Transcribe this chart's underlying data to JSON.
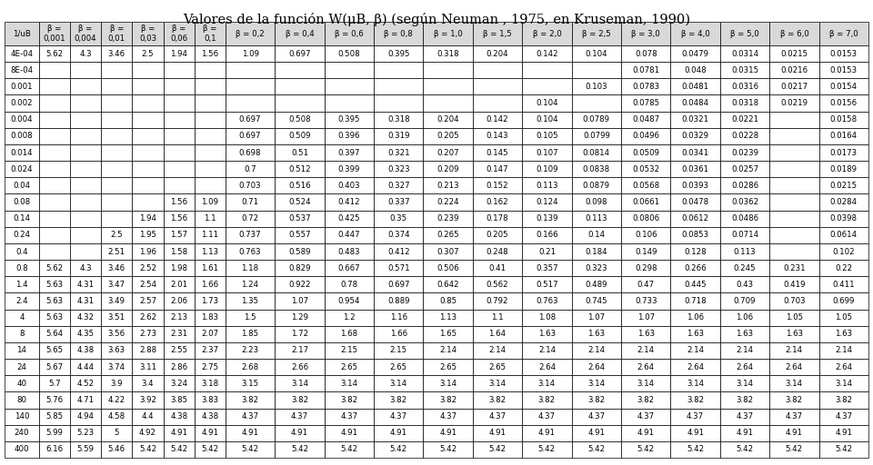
{
  "title": "Valores de la función W(μB, β) (según Neuman , 1975, en Kruseman, 1990)",
  "col_headers": [
    "1/uB",
    "β =\n0,001",
    "β =\n0,004",
    "β =\n0,01",
    "β =\n0,03",
    "β =\n0,06",
    "β =\n0,1",
    "β = 0,2",
    "β = 0,4",
    "β = 0,6",
    "β = 0,8",
    "β = 1,0",
    "β = 1,5",
    "β = 2,0",
    "β = 2,5",
    "β = 3,0",
    "β = 4,0",
    "β = 5,0",
    "β = 6,0",
    "β = 7,0"
  ],
  "rows": [
    [
      "4E-04",
      "5.62",
      "4.3",
      "3.46",
      "2.5",
      "1.94",
      "1.56",
      "1.09",
      "0.697",
      "0.508",
      "0.395",
      "0.318",
      "0.204",
      "0.142",
      "0.104",
      "0.078",
      "0.0479",
      "0.0314",
      "0.0215",
      "0.0153"
    ],
    [
      "8E-04",
      "",
      "",
      "",
      "",
      "",
      "",
      "",
      "",
      "",
      "",
      "",
      "",
      "",
      "",
      "0.0781",
      "0.048",
      "0.0315",
      "0.0216",
      "0.0153"
    ],
    [
      "0.001",
      "",
      "",
      "",
      "",
      "",
      "",
      "",
      "",
      "",
      "",
      "",
      "",
      "",
      "0.103",
      "0.0783",
      "0.0481",
      "0.0316",
      "0.0217",
      "0.0154"
    ],
    [
      "0.002",
      "",
      "",
      "",
      "",
      "",
      "",
      "",
      "",
      "",
      "",
      "",
      "",
      "0.104",
      "",
      "0.0785",
      "0.0484",
      "0.0318",
      "0.0219",
      "0.0156"
    ],
    [
      "0.004",
      "",
      "",
      "",
      "",
      "",
      "",
      "0.697",
      "0.508",
      "0.395",
      "0.318",
      "0.204",
      "0.142",
      "0.104",
      "0.0789",
      "0.0487",
      "0.0321",
      "0.0221",
      "",
      "0.0158"
    ],
    [
      "0.008",
      "",
      "",
      "",
      "",
      "",
      "",
      "0.697",
      "0.509",
      "0.396",
      "0.319",
      "0.205",
      "0.143",
      "0.105",
      "0.0799",
      "0.0496",
      "0.0329",
      "0.0228",
      "",
      "0.0164"
    ],
    [
      "0.014",
      "",
      "",
      "",
      "",
      "",
      "",
      "0.698",
      "0.51",
      "0.397",
      "0.321",
      "0.207",
      "0.145",
      "0.107",
      "0.0814",
      "0.0509",
      "0.0341",
      "0.0239",
      "",
      "0.0173"
    ],
    [
      "0.024",
      "",
      "",
      "",
      "",
      "",
      "",
      "0.7",
      "0.512",
      "0.399",
      "0.323",
      "0.209",
      "0.147",
      "0.109",
      "0.0838",
      "0.0532",
      "0.0361",
      "0.0257",
      "",
      "0.0189"
    ],
    [
      "0.04",
      "",
      "",
      "",
      "",
      "",
      "",
      "0.703",
      "0.516",
      "0.403",
      "0.327",
      "0.213",
      "0.152",
      "0.113",
      "0.0879",
      "0.0568",
      "0.0393",
      "0.0286",
      "",
      "0.0215"
    ],
    [
      "0.08",
      "",
      "",
      "",
      "",
      "1.56",
      "1.09",
      "0.71",
      "0.524",
      "0.412",
      "0.337",
      "0.224",
      "0.162",
      "0.124",
      "0.098",
      "0.0661",
      "0.0478",
      "0.0362",
      "",
      "0.0284"
    ],
    [
      "0.14",
      "",
      "",
      "",
      "1.94",
      "1.56",
      "1.1",
      "0.72",
      "0.537",
      "0.425",
      "0.35",
      "0.239",
      "0.178",
      "0.139",
      "0.113",
      "0.0806",
      "0.0612",
      "0.0486",
      "",
      "0.0398"
    ],
    [
      "0.24",
      "",
      "",
      "2.5",
      "1.95",
      "1.57",
      "1.11",
      "0.737",
      "0.557",
      "0.447",
      "0.374",
      "0.265",
      "0.205",
      "0.166",
      "0.14",
      "0.106",
      "0.0853",
      "0.0714",
      "",
      "0.0614"
    ],
    [
      "0.4",
      "",
      "",
      "2.51",
      "1.96",
      "1.58",
      "1.13",
      "0.763",
      "0.589",
      "0.483",
      "0.412",
      "0.307",
      "0.248",
      "0.21",
      "0.184",
      "0.149",
      "0.128",
      "0.113",
      "",
      "0.102"
    ],
    [
      "0.8",
      "5.62",
      "4.3",
      "3.46",
      "2.52",
      "1.98",
      "1.61",
      "1.18",
      "0.829",
      "0.667",
      "0.571",
      "0.506",
      "0.41",
      "0.357",
      "0.323",
      "0.298",
      "0.266",
      "0.245",
      "0.231",
      "0.22"
    ],
    [
      "1.4",
      "5.63",
      "4.31",
      "3.47",
      "2.54",
      "2.01",
      "1.66",
      "1.24",
      "0.922",
      "0.78",
      "0.697",
      "0.642",
      "0.562",
      "0.517",
      "0.489",
      "0.47",
      "0.445",
      "0.43",
      "0.419",
      "0.411"
    ],
    [
      "2.4",
      "5.63",
      "4.31",
      "3.49",
      "2.57",
      "2.06",
      "1.73",
      "1.35",
      "1.07",
      "0.954",
      "0.889",
      "0.85",
      "0.792",
      "0.763",
      "0.745",
      "0.733",
      "0.718",
      "0.709",
      "0.703",
      "0.699"
    ],
    [
      "4",
      "5.63",
      "4.32",
      "3.51",
      "2.62",
      "2.13",
      "1.83",
      "1.5",
      "1.29",
      "1.2",
      "1.16",
      "1.13",
      "1.1",
      "1.08",
      "1.07",
      "1.07",
      "1.06",
      "1.06",
      "1.05",
      "1.05"
    ],
    [
      "8",
      "5.64",
      "4.35",
      "3.56",
      "2.73",
      "2.31",
      "2.07",
      "1.85",
      "1.72",
      "1.68",
      "1.66",
      "1.65",
      "1.64",
      "1.63",
      "1.63",
      "1.63",
      "1.63",
      "1.63",
      "1.63",
      "1.63"
    ],
    [
      "14",
      "5.65",
      "4.38",
      "3.63",
      "2.88",
      "2.55",
      "2.37",
      "2.23",
      "2.17",
      "2.15",
      "2.15",
      "2.14",
      "2.14",
      "2.14",
      "2.14",
      "2.14",
      "2.14",
      "2.14",
      "2.14",
      "2.14"
    ],
    [
      "24",
      "5.67",
      "4.44",
      "3.74",
      "3.11",
      "2.86",
      "2.75",
      "2.68",
      "2.66",
      "2.65",
      "2.65",
      "2.65",
      "2.65",
      "2.64",
      "2.64",
      "2.64",
      "2.64",
      "2.64",
      "2.64",
      "2.64"
    ],
    [
      "40",
      "5.7",
      "4.52",
      "3.9",
      "3.4",
      "3.24",
      "3.18",
      "3.15",
      "3.14",
      "3.14",
      "3.14",
      "3.14",
      "3.14",
      "3.14",
      "3.14",
      "3.14",
      "3.14",
      "3.14",
      "3.14",
      "3.14"
    ],
    [
      "80",
      "5.76",
      "4.71",
      "4.22",
      "3.92",
      "3.85",
      "3.83",
      "3.82",
      "3.82",
      "3.82",
      "3.82",
      "3.82",
      "3.82",
      "3.82",
      "3.82",
      "3.82",
      "3.82",
      "3.82",
      "3.82",
      "3.82"
    ],
    [
      "140",
      "5.85",
      "4.94",
      "4.58",
      "4.4",
      "4.38",
      "4.38",
      "4.37",
      "4.37",
      "4.37",
      "4.37",
      "4.37",
      "4.37",
      "4.37",
      "4.37",
      "4.37",
      "4.37",
      "4.37",
      "4.37",
      "4.37"
    ],
    [
      "240",
      "5.99",
      "5.23",
      "5",
      "4.92",
      "4.91",
      "4.91",
      "4.91",
      "4.91",
      "4.91",
      "4.91",
      "4.91",
      "4.91",
      "4.91",
      "4.91",
      "4.91",
      "4.91",
      "4.91",
      "4.91",
      "4.91"
    ],
    [
      "400",
      "6.16",
      "5.59",
      "5.46",
      "5.42",
      "5.42",
      "5.42",
      "5.42",
      "5.42",
      "5.42",
      "5.42",
      "5.42",
      "5.42",
      "5.42",
      "5.42",
      "5.42",
      "5.42",
      "5.42",
      "5.42",
      "5.42"
    ]
  ],
  "bg_color": "#ffffff",
  "header_bg": "#d9d9d9",
  "border_color": "#000000",
  "text_color": "#000000",
  "font_size": 6.2,
  "header_font_size": 6.2,
  "title_fontsize": 10.5
}
